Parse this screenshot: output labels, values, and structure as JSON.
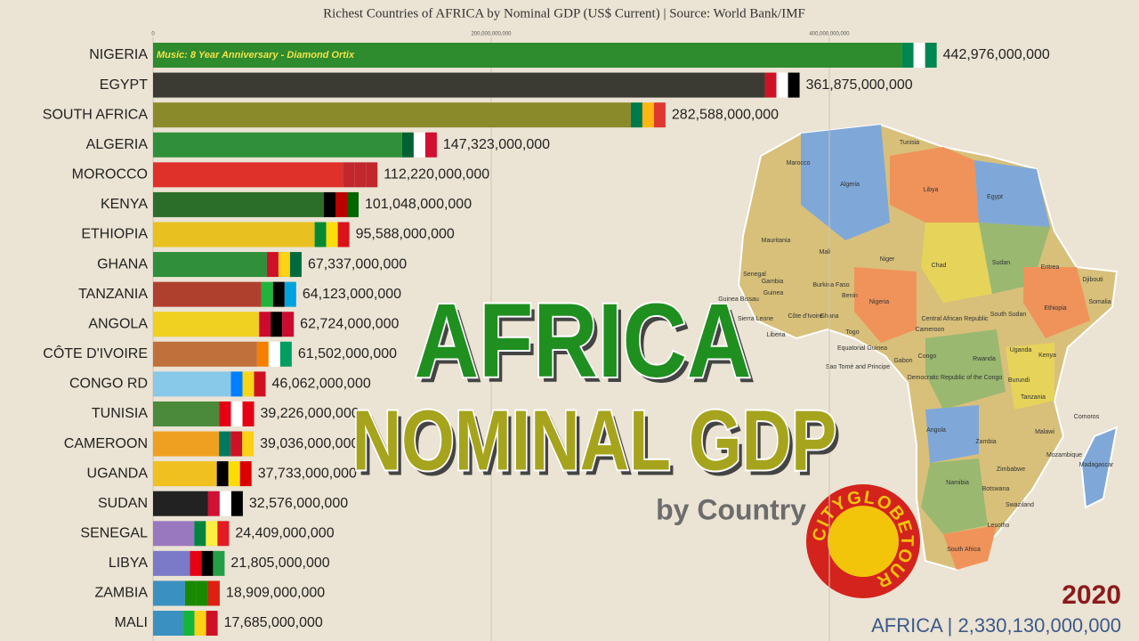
{
  "chart_data": {
    "type": "bar",
    "orientation": "horizontal",
    "title": "Richest Countries of AFRICA by Nominal GDP (US$ Current) | Source: World Bank/IMF",
    "annotation": "Music: 8 Year Anniversary - Diamond Ortix",
    "categories": [
      "NIGERIA",
      "EGYPT",
      "SOUTH AFRICA",
      "ALGERIA",
      "MOROCCO",
      "KENYA",
      "ETHIOPIA",
      "GHANA",
      "TANZANIA",
      "ANGOLA",
      "CÔTE D'IVOIRE",
      "CONGO RD",
      "TUNISIA",
      "CAMEROON",
      "UGANDA",
      "SUDAN",
      "SENEGAL",
      "LIBYA",
      "ZAMBIA",
      "MALI"
    ],
    "values": [
      442976000000,
      361875000000,
      282588000000,
      147323000000,
      112220000000,
      101048000000,
      95588000000,
      67337000000,
      64123000000,
      62724000000,
      61502000000,
      46062000000,
      39226000000,
      39036000000,
      37733000000,
      32576000000,
      24409000000,
      21805000000,
      18909000000,
      17685000000
    ],
    "value_labels": [
      "442,976,000,000",
      "361,875,000,000",
      "282,588,000,000",
      "147,323,000,000",
      "112,220,000,000",
      "101,048,000,000",
      "95,588,000,000",
      "67,337,000,000",
      "64,123,000,000",
      "62,724,000,000",
      "61,502,000,000",
      "46,062,000,000",
      "39,226,000,000",
      "39,036,000,000",
      "37,733,000,000",
      "32,576,000,000",
      "24,409,000,000",
      "21,805,000,000",
      "18,909,000,000",
      "17,685,000,000"
    ],
    "colors": [
      "#2e8b2e",
      "#3b3a33",
      "#8a8a2a",
      "#2f8f3a",
      "#e0302a",
      "#2a6e2a",
      "#e8c020",
      "#2f8f3a",
      "#b0402e",
      "#f0d020",
      "#c0703a",
      "#88c8e8",
      "#4a8a3a",
      "#f0a020",
      "#f0c020",
      "#222222",
      "#9a78c0",
      "#7a7ac8",
      "#3a90c0",
      "#3a90c0"
    ],
    "xlim": [
      0,
      500000000000
    ],
    "xticks": [
      {
        "value": 0,
        "label": "0"
      },
      {
        "value": 200000000000,
        "label": "200,000,000,000"
      },
      {
        "value": 400000000000,
        "label": "400,000,000,000"
      }
    ],
    "grid": true,
    "headline": "AFRICA",
    "subheadline": "NOMINAL GDP",
    "byline": "by Country",
    "year": "2020",
    "total": "AFRICA | 2,330,130,000,000"
  },
  "logo": "CITYGLOBETOUR",
  "map": {
    "labels": [
      "Tunisia",
      "Marocco",
      "Algeria",
      "Libya",
      "Egypt",
      "Mauritania",
      "Mali",
      "Niger",
      "Chad",
      "Sudan",
      "Eritrea",
      "Djibouti",
      "Senegal",
      "Gambia",
      "Guinea",
      "Burkina Faso",
      "Benin",
      "Nigeria",
      "Ethiopia",
      "Somalia",
      "Guinea Bissau",
      "Sierra Leone",
      "Liberia",
      "Côte d'Ivoire",
      "Ghana",
      "Togo",
      "Central African Republic",
      "South Sudan",
      "Cameroon",
      "Equatorial Guinea",
      "Sao Tomé and Principe",
      "Gabon",
      "Congo",
      "Democratic Republic of the Congo",
      "Rwanda",
      "Uganda",
      "Kenya",
      "Burundi",
      "Tanzania",
      "Comoros",
      "Angola",
      "Zambia",
      "Malawi",
      "Mozambique",
      "Zimbabwe",
      "Namibia",
      "Botswana",
      "Swaziland",
      "Lesotho",
      "South Africa",
      "Madagascar"
    ]
  }
}
